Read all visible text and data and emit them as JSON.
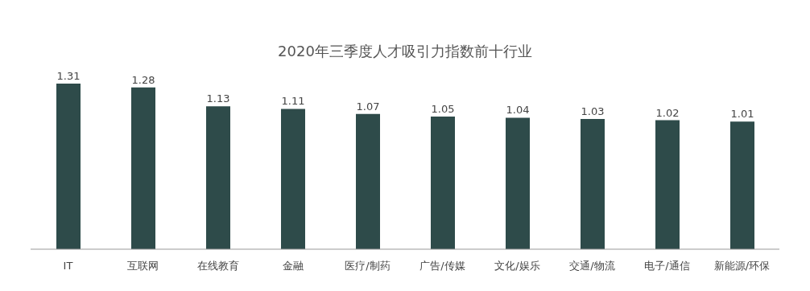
{
  "chart_data": {
    "type": "bar",
    "title": "2020年三季度人才吸引力指数前十行业",
    "categories": [
      "IT",
      "互联网",
      "在线教育",
      "金融",
      "医疗/制药",
      "广告/传媒",
      "文化/娱乐",
      "交通/物流",
      "电子/通信",
      "新能源/环保"
    ],
    "values": [
      1.31,
      1.28,
      1.13,
      1.11,
      1.07,
      1.05,
      1.04,
      1.03,
      1.02,
      1.01
    ],
    "color": "#2e4b4a",
    "data_labels": true,
    "grid": false,
    "legend": false
  }
}
